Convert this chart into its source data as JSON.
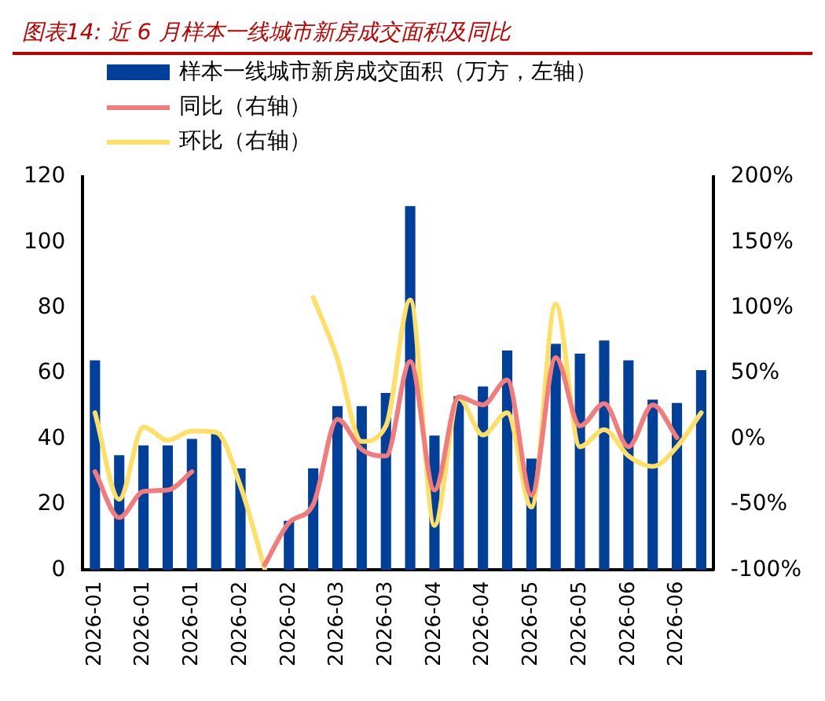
{
  "chart_data": {
    "type": "bar",
    "title": "图表14:  近 6 月样本一线城市新房成交面积及同比",
    "categories": [
      "2026-01",
      null,
      "2026-01",
      null,
      "2026-01",
      null,
      "2026-02",
      null,
      "2026-02",
      null,
      "2026-03",
      null,
      "2026-03",
      null,
      "2026-04",
      null,
      "2026-04",
      null,
      "2026-05",
      null,
      "2026-05",
      null,
      "2026-06",
      null,
      "2026-06",
      null
    ],
    "series": [
      {
        "name": "样本一线城市新房成交面积（万方，左轴）",
        "color": "#003f9a",
        "values": [
          64,
          35,
          38,
          38,
          40,
          42,
          31,
          null,
          15,
          31,
          50,
          50,
          54,
          111,
          41,
          53,
          56,
          67,
          34,
          69,
          66,
          70,
          64,
          52,
          51,
          61
        ]
      },
      {
        "name": "同比（右轴）",
        "type": "line",
        "axis": "y2",
        "color": "#f27c7c",
        "values": [
          -25,
          -60,
          -40,
          -39,
          -25,
          null,
          null,
          -96,
          -64,
          -50,
          15,
          -8,
          -13,
          59,
          -39,
          32,
          26,
          45,
          -43,
          62,
          10,
          27,
          -6,
          26,
          1,
          null
        ]
      },
      {
        "name": "环比（右轴）",
        "type": "line",
        "axis": "y2",
        "color": "#ffe066",
        "values": [
          20,
          -46,
          9,
          -1,
          6,
          5,
          -36,
          -99,
          null,
          108,
          61,
          -2,
          10,
          106,
          -66,
          31,
          3,
          20,
          -52,
          103,
          -6,
          7,
          -13,
          -21,
          -6,
          20
        ]
      }
    ],
    "ylim": [
      0,
      120
    ],
    "yticks": [
      0,
      20,
      40,
      60,
      80,
      100,
      120
    ],
    "y2lim": [
      -100,
      200
    ],
    "y2ticks": [
      {
        "value": -100,
        "label": "-100%"
      },
      {
        "value": -50,
        "label": "-50%"
      },
      {
        "value": 0,
        "label": "0%"
      },
      {
        "value": 50,
        "label": "50%"
      },
      {
        "value": 100,
        "label": "100%"
      },
      {
        "value": 150,
        "label": "150%"
      },
      {
        "value": 200,
        "label": "200%"
      }
    ],
    "grid": false,
    "legend": "top",
    "marker": "none"
  }
}
